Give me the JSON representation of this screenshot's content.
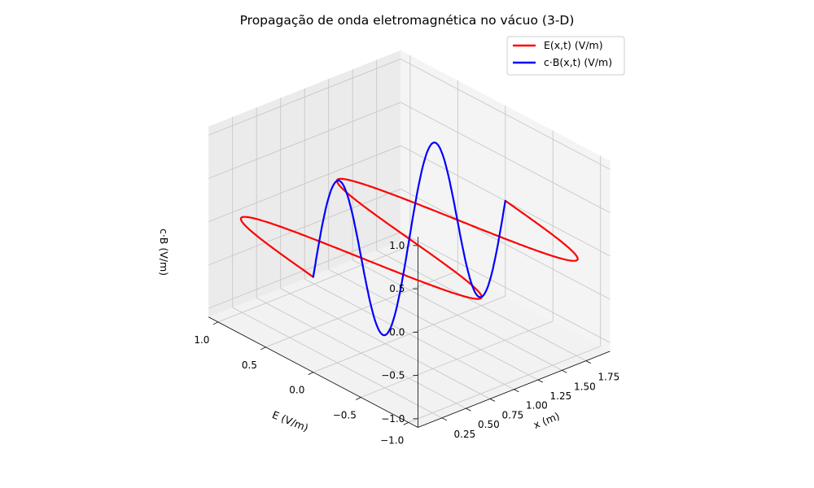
{
  "chart_data": {
    "type": "line",
    "projection": "3d",
    "title": "Propagação de onda eletromagnética no vácuo (3-D)",
    "xlabel": "x (m)",
    "ylabel": "E (V/m)",
    "zlabel": "c·B (V/m)",
    "x_ticks": [
      "0.25",
      "0.50",
      "0.75",
      "1.00",
      "1.25",
      "1.50",
      "1.75"
    ],
    "y_ticks": [
      "−1.0",
      "−0.5",
      "0.0",
      "0.5",
      "1.0"
    ],
    "z_ticks": [
      "−1.0",
      "−0.5",
      "0.0",
      "0.5",
      "1.0"
    ],
    "xlim": [
      0,
      2
    ],
    "ylim": [
      -1.1,
      1.1
    ],
    "zlim": [
      -1.1,
      1.1
    ],
    "wavelength": 1.0,
    "amplitude": 1.0,
    "series": [
      {
        "name": "E(x,t) (V/m)",
        "color": "#ff0000",
        "component": "E",
        "oscillates_along": "E (V/m)"
      },
      {
        "name": "c·B(x,t) (V/m)",
        "color": "#0000ff",
        "component": "cB",
        "oscillates_along": "c·B (V/m)"
      }
    ],
    "legend_position": "top-right",
    "grid": true
  }
}
